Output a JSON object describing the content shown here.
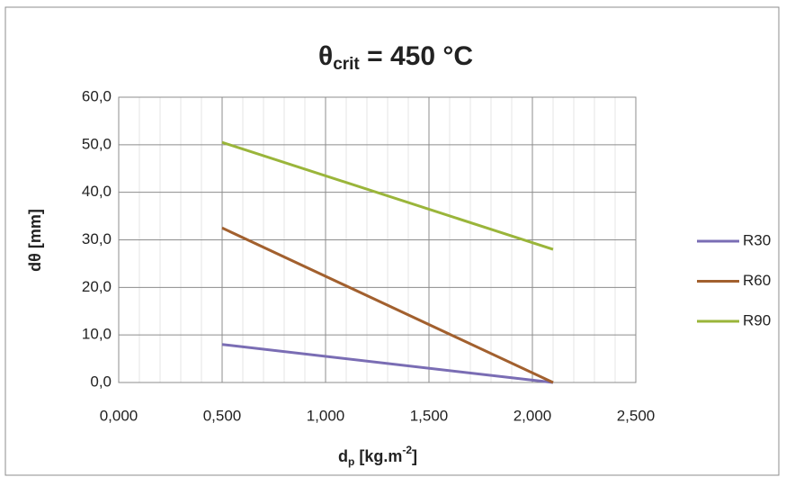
{
  "chart_data": {
    "type": "line",
    "title": {
      "symbol": "θ",
      "subscript": "crit",
      "rest": " = 450 °C"
    },
    "x_label": {
      "main": "d",
      "subscript": "p",
      "unit": " [kg.m",
      "superscript": "-2",
      "close": "]"
    },
    "y_label": "dθ [mm]",
    "x": [
      0.5,
      2.1
    ],
    "series": [
      {
        "name": "R30",
        "color": "#7a6db4",
        "values": [
          8.0,
          0
        ]
      },
      {
        "name": "R60",
        "color": "#a2602e",
        "values": [
          32.5,
          0
        ]
      },
      {
        "name": "R90",
        "color": "#9ab53a",
        "values": [
          50.5,
          28.0
        ]
      }
    ],
    "xlim": [
      0,
      2.5
    ],
    "xticks": [
      {
        "value": 0,
        "label": "0,000"
      },
      {
        "value": 0.5,
        "label": "0,500"
      },
      {
        "value": 1,
        "label": "1,000"
      },
      {
        "value": 1.5,
        "label": "1,500"
      },
      {
        "value": 2,
        "label": "2,000"
      },
      {
        "value": 2.5,
        "label": "2,500"
      }
    ],
    "ylim": [
      0,
      60
    ],
    "yticks": [
      {
        "value": 0,
        "label": "0,0"
      },
      {
        "value": 10,
        "label": "10,0"
      },
      {
        "value": 20,
        "label": "20,0"
      },
      {
        "value": 30,
        "label": "30,0"
      },
      {
        "value": 40,
        "label": "40,0"
      },
      {
        "value": 50,
        "label": "50,0"
      },
      {
        "value": 60,
        "label": "60,0"
      }
    ],
    "grid": true,
    "x_minor_grid_step": 0.1,
    "legend": "right"
  }
}
